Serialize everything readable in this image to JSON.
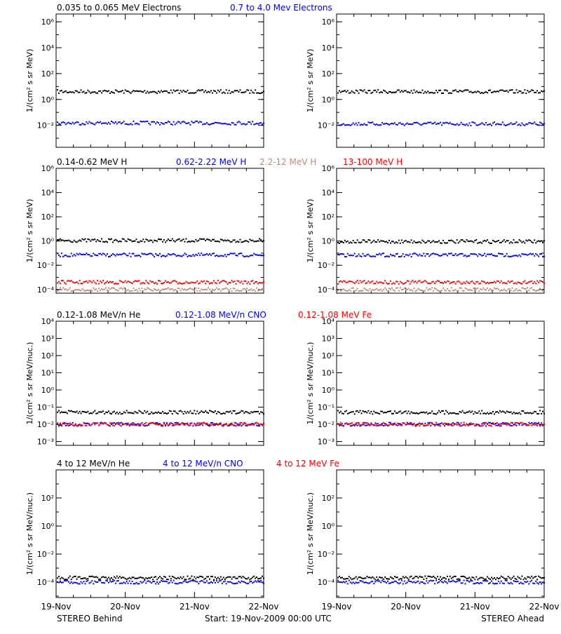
{
  "x_axis": {
    "ticks": [
      "19-Nov",
      "20-Nov",
      "21-Nov",
      "22-Nov"
    ]
  },
  "footer": {
    "left": "STEREO Behind",
    "center": "Start: 19-Nov-2009 00:00 UTC",
    "right": "STEREO Ahead"
  },
  "colors": {
    "black": "#000000",
    "blue": "#0000ff",
    "tan": "#c08a78",
    "red": "#ff0000"
  },
  "chart_data": [
    {
      "type": "scatter",
      "scale": "log",
      "ylim": [
        0.0002,
        4000000
      ],
      "ylabel": "1/(cm² s sr MeV)",
      "ytick_values": [
        0.01,
        1,
        100,
        10000,
        1000000
      ],
      "ytick_labels": [
        "10⁻²",
        "10⁰",
        "10²",
        "10⁴",
        "10⁶"
      ],
      "title_entries": [
        {
          "text": "0.035 to 0.065 MeV Electrons",
          "color": "#000000"
        },
        {
          "text": "0.7 to 4.0 Mev Electrons",
          "color": "#0000ff"
        }
      ],
      "series": [
        {
          "name": "0.035 to 0.065 MeV Electrons",
          "color": "#000000",
          "behind": 4,
          "ahead": 4
        },
        {
          "name": "0.7 to 4.0 Mev Electrons",
          "color": "#0000ff",
          "behind": 0.015,
          "ahead": 0.013
        }
      ]
    },
    {
      "type": "scatter",
      "scale": "log",
      "ylim": [
        5e-05,
        1000000
      ],
      "ylabel": "1/(cm² s sr MeV)",
      "ytick_values": [
        0.0001,
        0.01,
        1,
        100,
        10000,
        1000000
      ],
      "ytick_labels": [
        "10⁻⁴",
        "10⁻²",
        "10⁰",
        "10²",
        "10⁴",
        "10⁶"
      ],
      "title_entries": [
        {
          "text": "0.14-0.62 MeV H",
          "color": "#000000"
        },
        {
          "text": "0.62-2.22 MeV H",
          "color": "#0000ff"
        },
        {
          "text": "2.2-12 MeV H",
          "color": "#c08a78"
        },
        {
          "text": "13-100 MeV H",
          "color": "#ff0000"
        }
      ],
      "series": [
        {
          "name": "0.14-0.62 MeV H",
          "color": "#000000",
          "behind": 1.1,
          "ahead": 0.9
        },
        {
          "name": "0.62-2.22 MeV H",
          "color": "#0000ff",
          "behind": 0.07,
          "ahead": 0.07
        },
        {
          "name": "13-100 MeV H",
          "color": "#ff0000",
          "behind": 0.0004,
          "ahead": 0.0004
        },
        {
          "name": "2.2-12 MeV H",
          "color": "#c08a78",
          "behind": 0.0001,
          "ahead": 0.0001
        }
      ]
    },
    {
      "type": "scatter",
      "scale": "log",
      "ylim": [
        0.0006,
        10000
      ],
      "ylabel": "1/(cm² s sr MeV/nuc.)",
      "ytick_values": [
        0.001,
        0.01,
        0.1,
        1,
        10,
        100,
        1000,
        10000
      ],
      "ytick_labels": [
        "10⁻³",
        "10⁻²",
        "10⁻¹",
        "10⁰",
        "10¹",
        "10²",
        "10³",
        "10⁴"
      ],
      "title_entries": [
        {
          "text": "0.12-1.08 MeV/n He",
          "color": "#000000"
        },
        {
          "text": "0.12-1.08 MeV/n CNO",
          "color": "#0000ff"
        },
        {
          "text": "0.12-1.08 MeV Fe",
          "color": "#ff0000"
        }
      ],
      "series": [
        {
          "name": "0.12-1.08 MeV/n He",
          "color": "#000000",
          "behind": 0.05,
          "ahead": 0.05
        },
        {
          "name": "0.12-1.08 MeV/n CNO",
          "color": "#0000ff",
          "behind": 0.01,
          "ahead": 0.01
        },
        {
          "name": "0.12-1.08 MeV Fe",
          "color": "#ff0000",
          "behind": 0.01,
          "ahead": 0.01
        }
      ]
    },
    {
      "type": "scatter",
      "scale": "log",
      "ylim": [
        8e-06,
        10000
      ],
      "ylabel": "1/(cm² s sr MeV/nuc.)",
      "ytick_values": [
        0.0001,
        0.01,
        1,
        100
      ],
      "ytick_labels": [
        "10⁻⁴",
        "10⁻²",
        "10⁰",
        "10²"
      ],
      "title_entries": [
        {
          "text": "4 to 12 MeV/n He",
          "color": "#000000"
        },
        {
          "text": "4 to 12 MeV/n CNO",
          "color": "#0000ff"
        },
        {
          "text": "4 to 12 MeV Fe",
          "color": "#ff0000"
        }
      ],
      "series": [
        {
          "name": "4 to 12 MeV/n He",
          "color": "#000000",
          "behind": 0.0002,
          "ahead": 0.0002
        },
        {
          "name": "4 to 12 MeV/n CNO",
          "color": "#0000ff",
          "behind": 0.0001,
          "ahead": 0.0001
        }
      ]
    }
  ]
}
